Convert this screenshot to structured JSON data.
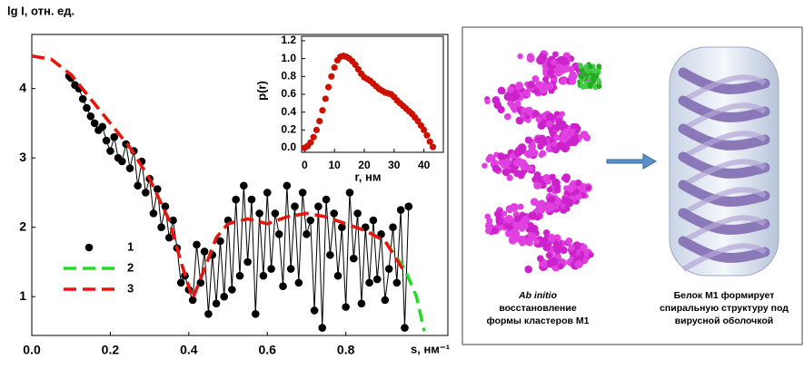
{
  "chart_data": [
    {
      "type": "line",
      "y_label": "lg I, отн. ед.",
      "x_label": "s, нм⁻¹",
      "xlim": [
        0,
        1.06
      ],
      "ylim": [
        0.44,
        4.78
      ],
      "xticks": [
        {
          "value": 0,
          "label": "0.0"
        },
        0.2,
        0.4,
        0.6,
        0.8
      ],
      "yticks": [
        1,
        2,
        3,
        4
      ],
      "legend": "lower-left",
      "series": [
        {
          "name": "1",
          "color": "#000000",
          "marker": true,
          "dash": false,
          "x": [
            0.095,
            0.1,
            0.11,
            0.12,
            0.13,
            0.14,
            0.15,
            0.16,
            0.17,
            0.18,
            0.19,
            0.2,
            0.21,
            0.22,
            0.23,
            0.24,
            0.25,
            0.26,
            0.27,
            0.28,
            0.29,
            0.3,
            0.31,
            0.32,
            0.33,
            0.34,
            0.35,
            0.36,
            0.37,
            0.38,
            0.39,
            0.4,
            0.41,
            0.42,
            0.43,
            0.44,
            0.45,
            0.46,
            0.47,
            0.48,
            0.49,
            0.5,
            0.51,
            0.52,
            0.53,
            0.54,
            0.55,
            0.56,
            0.57,
            0.58,
            0.59,
            0.6,
            0.61,
            0.62,
            0.63,
            0.64,
            0.65,
            0.66,
            0.67,
            0.68,
            0.69,
            0.7,
            0.71,
            0.72,
            0.73,
            0.74,
            0.75,
            0.76,
            0.77,
            0.78,
            0.79,
            0.8,
            0.81,
            0.82,
            0.83,
            0.84,
            0.85,
            0.86,
            0.87,
            0.88,
            0.89,
            0.9,
            0.91,
            0.92,
            0.93,
            0.94,
            0.95,
            0.96
          ],
          "values": [
            4.18,
            4.15,
            4.05,
            4.0,
            3.85,
            3.72,
            3.6,
            3.5,
            3.4,
            3.45,
            3.25,
            3.1,
            3.3,
            3.0,
            2.95,
            3.2,
            2.85,
            3.1,
            2.6,
            2.95,
            2.5,
            2.7,
            2.2,
            2.55,
            2.0,
            2.3,
            1.85,
            2.1,
            1.7,
            1.2,
            1.3,
            1.1,
            0.95,
            1.75,
            1.2,
            1.65,
            0.75,
            1.6,
            0.9,
            1.8,
            1.0,
            2.1,
            1.1,
            2.4,
            1.3,
            2.6,
            1.5,
            2.4,
            0.75,
            2.2,
            1.3,
            2.5,
            1.4,
            2.2,
            1.9,
            1.15,
            2.6,
            1.4,
            2.3,
            1.2,
            2.5,
            1.9,
            2.1,
            0.8,
            2.3,
            0.55,
            2.4,
            1.6,
            2.2,
            1.3,
            2.0,
            0.85,
            2.5,
            1.55,
            2.2,
            0.9,
            2.0,
            1.2,
            2.1,
            1.25,
            1.9,
            0.95,
            1.4,
            2.0,
            1.2,
            2.25,
            0.55,
            2.3
          ]
        },
        {
          "name": "2",
          "color": "#22dd22",
          "marker": false,
          "dash": true,
          "x": [
            0,
            0.05,
            0.1,
            0.15,
            0.2,
            0.25,
            0.3,
            0.35,
            0.38,
            0.41,
            0.44,
            0.47,
            0.5,
            0.55,
            0.6,
            0.65,
            0.7,
            0.75,
            0.8,
            0.85,
            0.9,
            0.95,
            0.98,
            1.0
          ],
          "values": [
            4.47,
            4.42,
            4.2,
            3.85,
            3.5,
            3.15,
            2.7,
            2.1,
            1.5,
            0.97,
            1.4,
            1.85,
            2.05,
            2.12,
            2.05,
            2.15,
            2.2,
            2.15,
            2.05,
            1.95,
            1.8,
            1.4,
            1.0,
            0.5
          ]
        },
        {
          "name": "3",
          "color": "#ee1111",
          "marker": false,
          "dash": true,
          "x": [
            0,
            0.05,
            0.1,
            0.15,
            0.2,
            0.25,
            0.3,
            0.35,
            0.38,
            0.41,
            0.44,
            0.47,
            0.5,
            0.55,
            0.6,
            0.65,
            0.7,
            0.75,
            0.8,
            0.85,
            0.9,
            0.95,
            0.98,
            1.0
          ],
          "values": [
            4.47,
            4.42,
            4.2,
            3.85,
            3.5,
            3.15,
            2.7,
            2.1,
            1.5,
            0.97,
            1.4,
            1.85,
            2.05,
            2.12,
            2.05,
            2.15,
            2.2,
            2.15,
            2.05,
            1.95,
            1.8,
            1.35,
            null,
            null
          ]
        }
      ]
    },
    {
      "type": "scatter",
      "y_label": "p(r)",
      "x_label": "r,  нм",
      "xlim": [
        -1,
        46.5
      ],
      "ylim": [
        -0.05,
        1.25
      ],
      "xticks": [
        0,
        10,
        20,
        30,
        40
      ],
      "yticks": [
        {
          "value": 0,
          "label": "0.0"
        },
        0.2,
        0.4,
        0.6,
        0.8,
        {
          "value": 1,
          "label": "1.0"
        },
        1.2
      ],
      "series": [
        {
          "color": "#cc1100",
          "x": [
            0,
            1,
            2,
            3,
            4,
            5,
            6,
            7,
            8,
            9,
            10,
            11,
            12,
            13,
            14,
            15,
            16,
            17,
            18,
            19,
            20,
            21,
            22,
            23,
            24,
            25,
            26,
            27,
            28,
            29,
            30,
            31,
            32,
            33,
            34,
            35,
            36,
            37,
            38,
            39,
            40,
            41,
            42,
            43
          ],
          "values": [
            0,
            0.02,
            0.06,
            0.12,
            0.2,
            0.3,
            0.42,
            0.55,
            0.68,
            0.8,
            0.9,
            0.98,
            1.02,
            1.03,
            1.02,
            1.0,
            0.97,
            0.93,
            0.88,
            0.83,
            0.79,
            0.77,
            0.75,
            0.72,
            0.69,
            0.66,
            0.64,
            0.62,
            0.61,
            0.6,
            0.57,
            0.53,
            0.5,
            0.47,
            0.44,
            0.41,
            0.38,
            0.34,
            0.3,
            0.25,
            0.2,
            0.14,
            0.07,
            0.01
          ]
        }
      ]
    }
  ],
  "diagram": {
    "left_caption": [
      "Ab initio",
      "восстановление",
      "формы кластеров М1"
    ],
    "right_caption": [
      "Белок М1 формирует",
      "спиральную структуру под",
      "вирусной оболочкой"
    ]
  }
}
